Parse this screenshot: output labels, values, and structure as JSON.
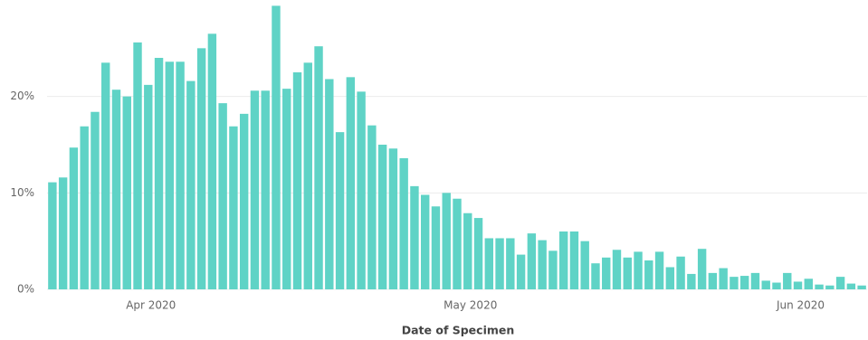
{
  "chart_data": {
    "type": "bar",
    "x_label": "Date of Specimen",
    "categories": [
      null,
      null,
      null,
      null,
      null,
      null,
      null,
      null,
      null,
      "Apr 2020",
      null,
      null,
      null,
      null,
      null,
      null,
      null,
      null,
      null,
      null,
      null,
      null,
      null,
      null,
      null,
      null,
      null,
      null,
      null,
      null,
      null,
      null,
      null,
      null,
      null,
      null,
      null,
      null,
      null,
      "May 2020",
      null,
      null,
      null,
      null,
      null,
      null,
      null,
      null,
      null,
      null,
      null,
      null,
      null,
      null,
      null,
      null,
      null,
      null,
      null,
      null,
      null,
      null,
      null,
      null,
      null,
      null,
      null,
      null,
      null,
      null,
      "Jun 2020",
      null,
      null,
      null,
      null,
      null,
      null
    ],
    "values": [
      11.1,
      11.6,
      14.7,
      16.9,
      18.4,
      23.5,
      20.7,
      20.0,
      25.6,
      21.2,
      24.0,
      23.6,
      23.6,
      21.6,
      25.0,
      26.5,
      19.3,
      16.9,
      18.2,
      20.6,
      20.6,
      29.4,
      20.8,
      22.5,
      23.5,
      25.2,
      21.8,
      16.3,
      22.0,
      20.5,
      17.0,
      15.0,
      14.6,
      13.6,
      10.7,
      9.8,
      8.6,
      10.0,
      9.4,
      7.9,
      7.4,
      5.3,
      5.3,
      5.3,
      3.6,
      5.8,
      5.1,
      4.0,
      6.0,
      6.0,
      5.0,
      2.7,
      3.3,
      4.1,
      3.3,
      3.9,
      3.0,
      3.9,
      2.3,
      3.4,
      1.6,
      4.2,
      1.7,
      2.2,
      1.3,
      1.4,
      1.7,
      0.9,
      0.7,
      1.7,
      0.8,
      1.1,
      0.5,
      0.4,
      1.3,
      0.6,
      0.4
    ],
    "color": "#5fd3c6",
    "ylim": [
      0,
      30
    ],
    "yticks": [
      {
        "value": 0,
        "label": "0%"
      },
      {
        "value": 10,
        "label": "10%"
      },
      {
        "value": 20,
        "label": "20%"
      }
    ],
    "grid": true
  }
}
